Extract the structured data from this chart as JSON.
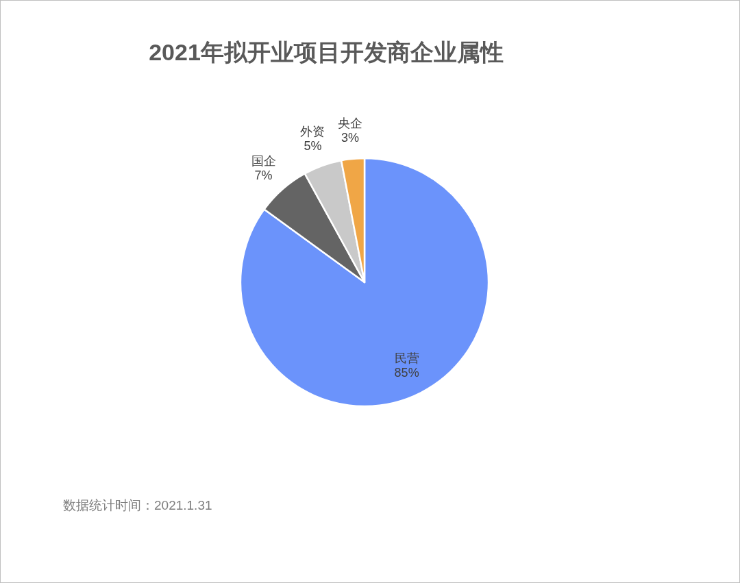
{
  "chart_data": {
    "type": "pie",
    "title": "2021年拟开业项目开发商企业属性",
    "categories": [
      "民营",
      "国企",
      "外资",
      "央企"
    ],
    "values": [
      85,
      7,
      5,
      3
    ],
    "colors": [
      "#6b93fb",
      "#646464",
      "#c9c9c9",
      "#f0a646"
    ],
    "value_labels": [
      "85%",
      "7%",
      "5%",
      "3%"
    ],
    "legend": false,
    "annotations": [
      "数据统计时间：2021.1.31"
    ]
  }
}
